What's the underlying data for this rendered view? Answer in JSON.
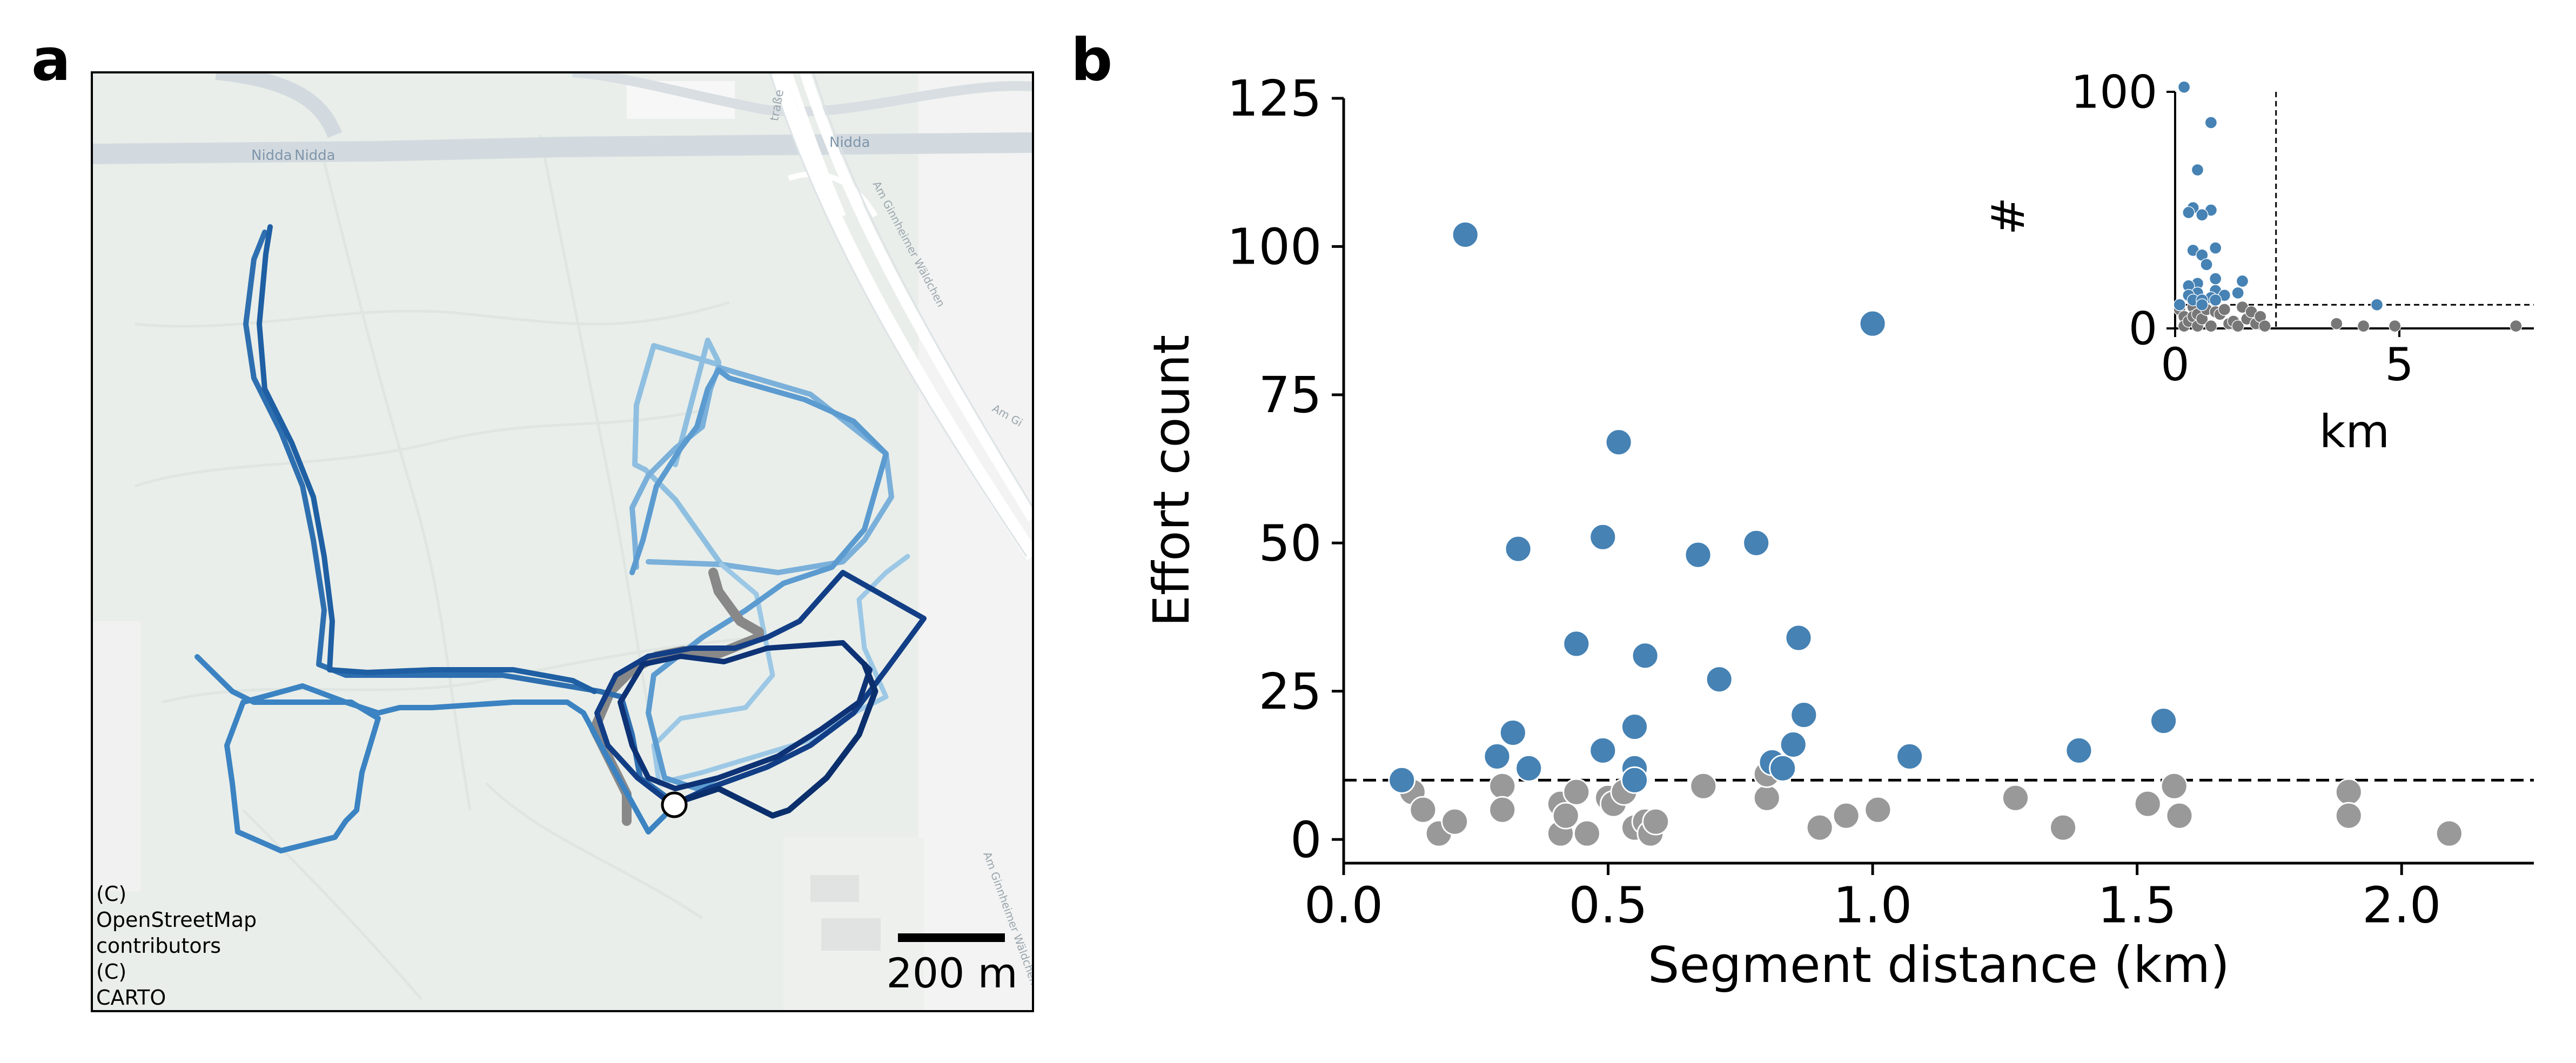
{
  "panels": {
    "a": {
      "label": "a",
      "map_labels": [
        "Nidda",
        "Nidda",
        "Nidda",
        "traße",
        "Am Ginnheimer Wäldchen",
        "Am Ginnheimer Wäldchen",
        "Am Gi"
      ],
      "attribution": [
        "(C)",
        "OpenStreetMap",
        "contributors",
        "(C)",
        "CARTO"
      ],
      "scalebar_label": "200 m"
    },
    "b": {
      "label": "b"
    }
  },
  "colors": {
    "highlight": "#4682B4",
    "other": "#999999",
    "track_gray": "#888888"
  },
  "chart_data": [
    {
      "type": "scatter",
      "panel": "b",
      "xlabel": "Segment distance (km)",
      "ylabel": "Effort count",
      "xlim": [
        0.0,
        2.25
      ],
      "ylim": [
        -4,
        125
      ],
      "xticks": [
        0.0,
        0.5,
        1.0,
        1.5,
        2.0
      ],
      "xtick_labels": [
        "0.0",
        "0.5",
        "1.0",
        "1.5",
        "2.0"
      ],
      "yticks": [
        0,
        25,
        50,
        75,
        100,
        125
      ],
      "ytick_labels": [
        "0",
        "25",
        "50",
        "75",
        "100",
        "125"
      ],
      "threshold": 10,
      "grid": false,
      "series": [
        {
          "color": "#4682B4",
          "points": [
            [
              0.11,
              10
            ],
            [
              0.23,
              102
            ],
            [
              0.29,
              14
            ],
            [
              0.32,
              18
            ],
            [
              0.33,
              49
            ],
            [
              0.35,
              12
            ],
            [
              0.44,
              33
            ],
            [
              0.49,
              51
            ],
            [
              0.49,
              15
            ],
            [
              0.52,
              67
            ],
            [
              0.55,
              19
            ],
            [
              0.55,
              12
            ],
            [
              0.55,
              10
            ],
            [
              0.57,
              31
            ],
            [
              0.67,
              48
            ],
            [
              0.71,
              27
            ],
            [
              0.78,
              50
            ],
            [
              0.81,
              13
            ],
            [
              0.83,
              12
            ],
            [
              0.85,
              16
            ],
            [
              0.86,
              34
            ],
            [
              0.87,
              21
            ],
            [
              1.0,
              87
            ],
            [
              1.07,
              14
            ],
            [
              1.39,
              15
            ],
            [
              1.55,
              20
            ]
          ]
        },
        {
          "color": "#999999",
          "points": [
            [
              0.13,
              8
            ],
            [
              0.15,
              5
            ],
            [
              0.18,
              1
            ],
            [
              0.21,
              3
            ],
            [
              0.3,
              9
            ],
            [
              0.3,
              5
            ],
            [
              0.41,
              1
            ],
            [
              0.41,
              6
            ],
            [
              0.42,
              4
            ],
            [
              0.44,
              8
            ],
            [
              0.46,
              1
            ],
            [
              0.5,
              7
            ],
            [
              0.51,
              6
            ],
            [
              0.53,
              8
            ],
            [
              0.55,
              2
            ],
            [
              0.57,
              3
            ],
            [
              0.58,
              1
            ],
            [
              0.59,
              3
            ],
            [
              0.68,
              9
            ],
            [
              0.8,
              7
            ],
            [
              0.8,
              11
            ],
            [
              0.9,
              2
            ],
            [
              0.95,
              4
            ],
            [
              1.01,
              5
            ],
            [
              1.27,
              7
            ],
            [
              1.36,
              2
            ],
            [
              1.52,
              6
            ],
            [
              1.57,
              9
            ],
            [
              1.58,
              4
            ],
            [
              1.9,
              8
            ],
            [
              1.9,
              4
            ],
            [
              2.09,
              1
            ]
          ]
        }
      ]
    },
    {
      "type": "scatter",
      "panel": "b-inset",
      "xlabel": "km",
      "ylabel": "#",
      "xlim": [
        0,
        8
      ],
      "ylim": [
        0,
        100
      ],
      "xticks": [
        0,
        5
      ],
      "xtick_labels": [
        "0",
        "5"
      ],
      "yticks": [
        0,
        100
      ],
      "ytick_labels": [
        "0",
        "100"
      ],
      "vline": 2.25,
      "hline": 10,
      "series": [
        {
          "color": "#4682B4",
          "points": [
            [
              0.2,
              102
            ],
            [
              0.8,
              87
            ],
            [
              0.5,
              67
            ],
            [
              0.4,
              51
            ],
            [
              0.3,
              49
            ],
            [
              0.8,
              50
            ],
            [
              0.6,
              48
            ],
            [
              0.4,
              33
            ],
            [
              0.6,
              31
            ],
            [
              0.7,
              27
            ],
            [
              0.9,
              34
            ],
            [
              0.9,
              21
            ],
            [
              1.5,
              20
            ],
            [
              0.5,
              19
            ],
            [
              0.3,
              18
            ],
            [
              0.9,
              16
            ],
            [
              1.4,
              15
            ],
            [
              0.5,
              15
            ],
            [
              0.3,
              14
            ],
            [
              1.1,
              14
            ],
            [
              0.8,
              13
            ],
            [
              0.4,
              12
            ],
            [
              0.9,
              12
            ],
            [
              0.6,
              12
            ],
            [
              0.1,
              10
            ],
            [
              0.6,
              10
            ],
            [
              4.5,
              10
            ]
          ]
        },
        {
          "color": "#777777",
          "points": [
            [
              0.1,
              8
            ],
            [
              0.2,
              5
            ],
            [
              0.2,
              1
            ],
            [
              0.3,
              3
            ],
            [
              0.4,
              9
            ],
            [
              0.4,
              5
            ],
            [
              0.5,
              1
            ],
            [
              0.5,
              6
            ],
            [
              0.6,
              4
            ],
            [
              0.7,
              8
            ],
            [
              0.8,
              1
            ],
            [
              0.9,
              7
            ],
            [
              1.0,
              6
            ],
            [
              1.1,
              8
            ],
            [
              1.2,
              2
            ],
            [
              1.3,
              3
            ],
            [
              1.4,
              1
            ],
            [
              1.5,
              9
            ],
            [
              1.6,
              4
            ],
            [
              1.7,
              7
            ],
            [
              1.8,
              2
            ],
            [
              1.9,
              5
            ],
            [
              2.0,
              1
            ],
            [
              3.6,
              2
            ],
            [
              4.2,
              1
            ],
            [
              4.9,
              1
            ],
            [
              7.6,
              1
            ]
          ]
        }
      ]
    }
  ]
}
